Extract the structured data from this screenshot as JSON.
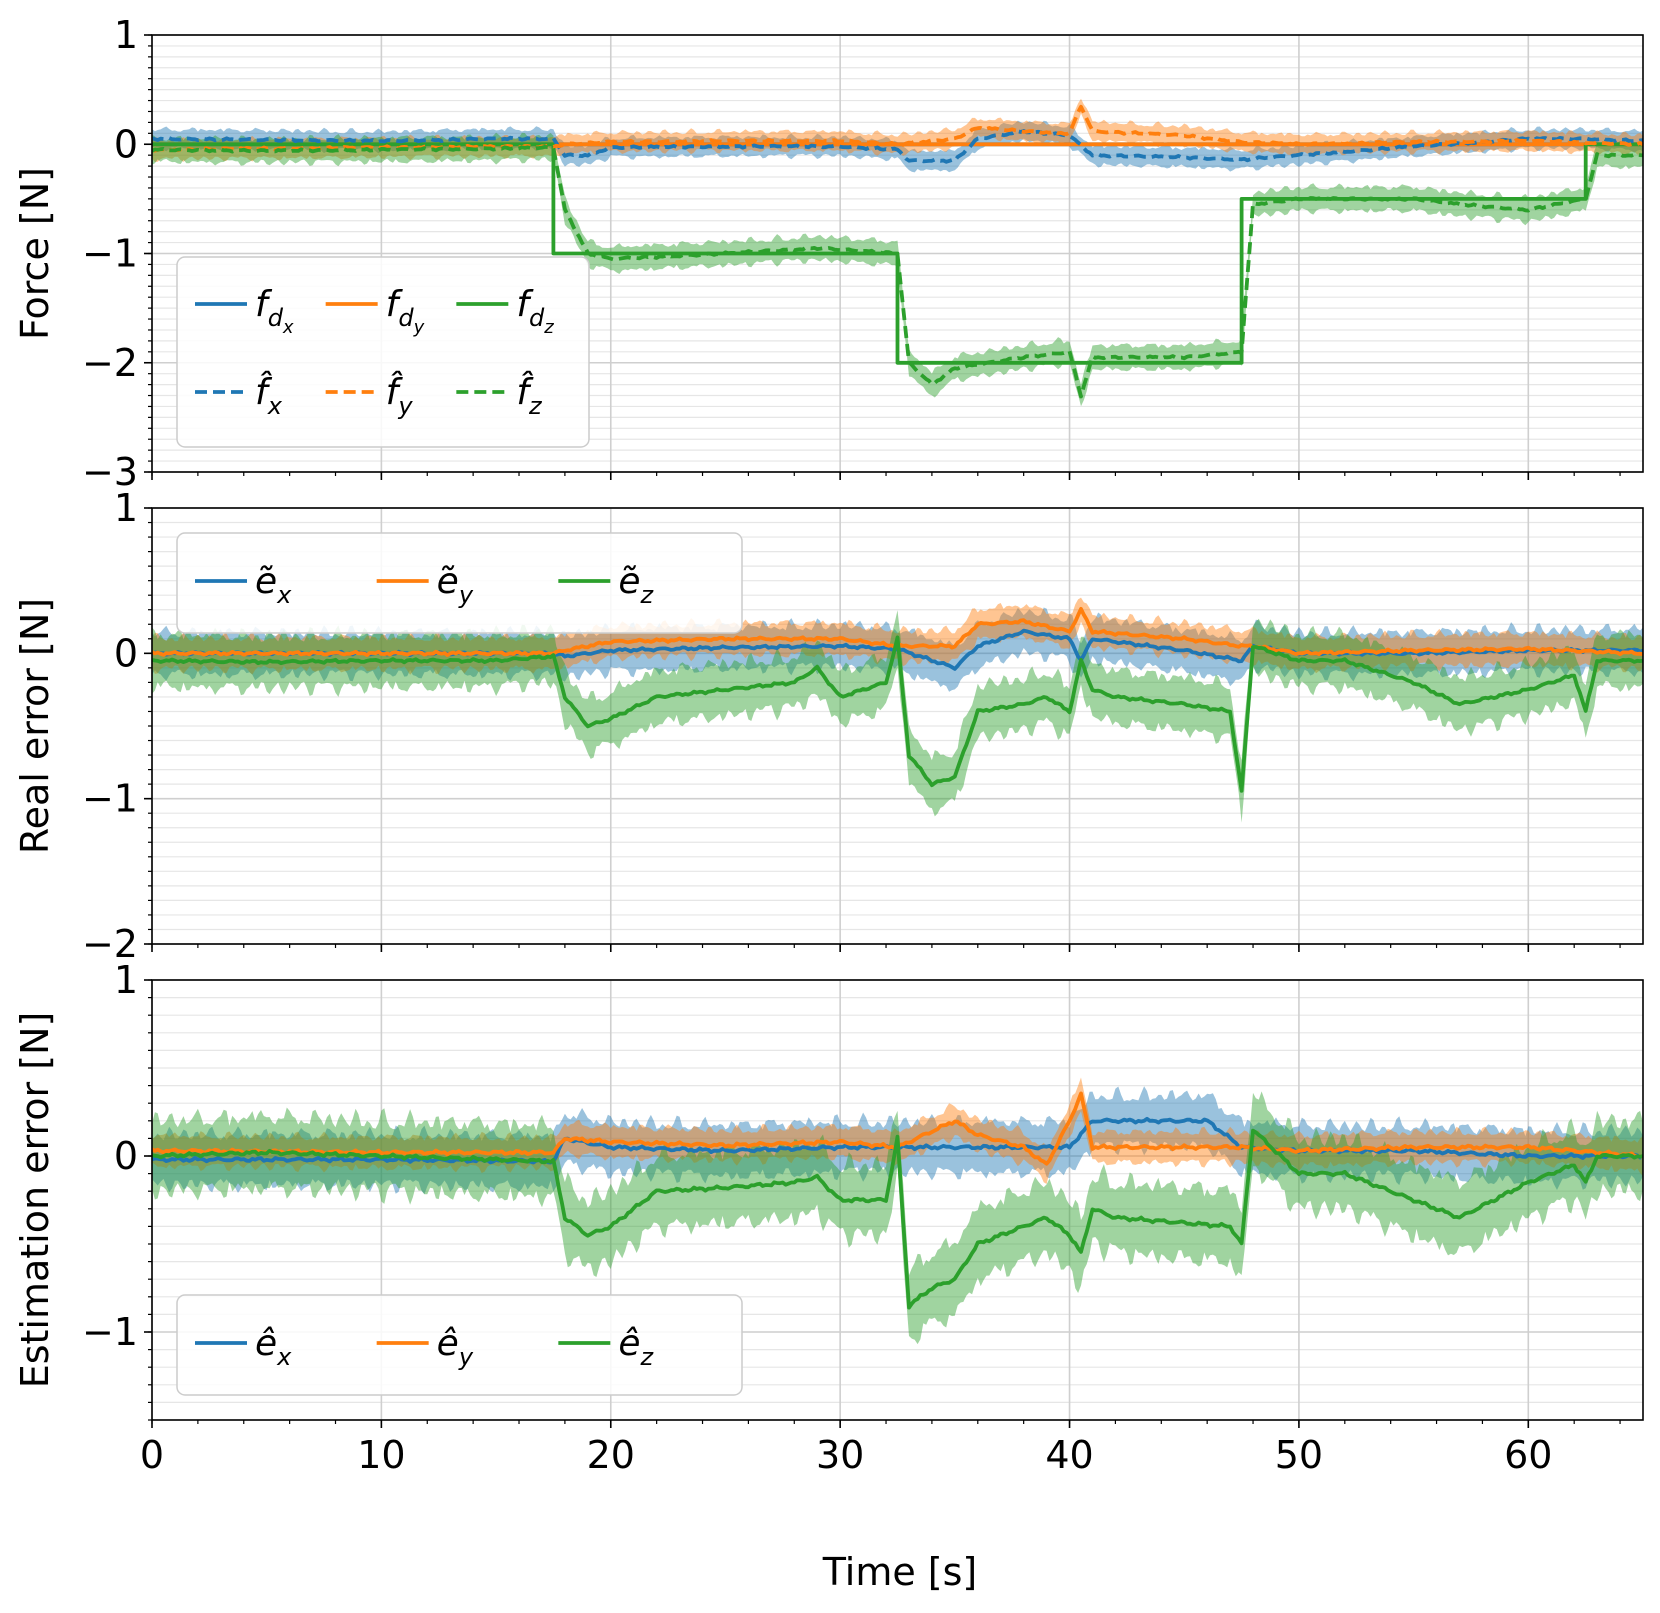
{
  "xlabel": "Time [s]",
  "colors": {
    "x": "#1f77b4",
    "y": "#ff7f0e",
    "z": "#2ca02c"
  },
  "chart_data": [
    {
      "type": "line",
      "panel": "top",
      "title": "",
      "ylabel": "Force [N]",
      "xlabel": "Time [s]",
      "xlim": [
        0,
        65
      ],
      "ylim": [
        -3,
        1
      ],
      "xticks": [
        0,
        10,
        20,
        30,
        40,
        50,
        60
      ],
      "yticks": [
        1,
        0,
        -1,
        -2,
        -3
      ],
      "ytick_labels": [
        "1",
        "0",
        "−1",
        "−2",
        "−3"
      ],
      "grid": true,
      "legend": {
        "position": "lower-left",
        "ncol": 3,
        "entries": [
          {
            "key": "f_dx",
            "base": "f",
            "sub": "d",
            "subsub": "x",
            "color": "#1f77b4",
            "dash": false
          },
          {
            "key": "f_dy",
            "base": "f",
            "sub": "d",
            "subsub": "y",
            "color": "#ff7f0e",
            "dash": false
          },
          {
            "key": "f_dz",
            "base": "f",
            "sub": "d",
            "subsub": "z",
            "color": "#2ca02c",
            "dash": false
          },
          {
            "key": "fhat_x",
            "base": "f̂",
            "sub": "x",
            "color": "#1f77b4",
            "dash": true
          },
          {
            "key": "fhat_y",
            "base": "f̂",
            "sub": "y",
            "color": "#ff7f0e",
            "dash": true
          },
          {
            "key": "fhat_z",
            "base": "f̂",
            "sub": "z",
            "color": "#2ca02c",
            "dash": true
          }
        ]
      },
      "series": [
        {
          "name": "f_dx",
          "color": "#1f77b4",
          "dash": false,
          "x": [
            0,
            65
          ],
          "values": [
            0,
            0
          ]
        },
        {
          "name": "f_dy",
          "color": "#ff7f0e",
          "dash": false,
          "x": [
            0,
            65
          ],
          "values": [
            0,
            0
          ]
        },
        {
          "name": "f_dz",
          "color": "#2ca02c",
          "dash": false,
          "x": [
            0,
            17.5,
            17.5,
            32.5,
            32.5,
            47.5,
            47.5,
            62.5,
            62.5,
            65
          ],
          "values": [
            0,
            0,
            -1,
            -1,
            -2,
            -2,
            -0.5,
            -0.5,
            0,
            0
          ]
        },
        {
          "name": "fhat_x",
          "color": "#1f77b4",
          "dash": true,
          "x": [
            0,
            5,
            10,
            15,
            17.5,
            18,
            19,
            20,
            25,
            30,
            32.5,
            33,
            35,
            36,
            38,
            40,
            41,
            45,
            47.5,
            50,
            55,
            60,
            62.5,
            65
          ],
          "values": [
            0.05,
            0.04,
            0.03,
            0.05,
            0.05,
            -0.1,
            -0.1,
            -0.03,
            -0.02,
            -0.02,
            -0.05,
            -0.15,
            -0.15,
            0.05,
            0.12,
            0.08,
            -0.1,
            -0.12,
            -0.14,
            -0.1,
            -0.02,
            0.05,
            0.05,
            0.03
          ],
          "band": 0.12
        },
        {
          "name": "fhat_y",
          "color": "#ff7f0e",
          "dash": true,
          "x": [
            0,
            10,
            17.5,
            18,
            20,
            25,
            30,
            32.5,
            35,
            36,
            38,
            40,
            40.5,
            41,
            45,
            47.5,
            50,
            55,
            60,
            65
          ],
          "values": [
            -0.05,
            -0.03,
            -0.02,
            0,
            0.02,
            0.03,
            0.03,
            0,
            0.05,
            0.15,
            0.12,
            0.1,
            0.35,
            0.12,
            0.08,
            0.02,
            0,
            0.02,
            0.03,
            0
          ],
          "band": 0.12
        },
        {
          "name": "fhat_z",
          "color": "#2ca02c",
          "dash": true,
          "x": [
            0,
            5,
            10,
            15,
            17.5,
            18,
            19,
            20,
            25,
            29,
            32.5,
            33,
            34,
            35,
            38,
            40,
            40.5,
            41,
            45,
            47.5,
            48,
            50,
            55,
            57,
            60,
            62.5,
            63,
            65
          ],
          "values": [
            -0.05,
            -0.06,
            -0.05,
            -0.04,
            -0.03,
            -0.6,
            -1.0,
            -1.05,
            -1.0,
            -0.95,
            -1.0,
            -2.0,
            -2.2,
            -2.05,
            -1.95,
            -1.9,
            -2.3,
            -1.95,
            -1.95,
            -1.9,
            -0.55,
            -0.5,
            -0.5,
            -0.55,
            -0.6,
            -0.5,
            -0.1,
            -0.1
          ],
          "band": 0.15
        }
      ]
    },
    {
      "type": "line",
      "panel": "middle",
      "title": "",
      "ylabel": "Real error [N]",
      "xlabel": "Time [s]",
      "xlim": [
        0,
        65
      ],
      "ylim": [
        -2,
        1
      ],
      "xticks": [
        0,
        10,
        20,
        30,
        40,
        50,
        60
      ],
      "yticks": [
        1,
        0,
        -1,
        -2
      ],
      "ytick_labels": [
        "1",
        "0",
        "−1",
        "−2"
      ],
      "grid": true,
      "legend": {
        "position": "upper-left",
        "ncol": 3,
        "entries": [
          {
            "key": "etilde_x",
            "base": "ẽ",
            "sub": "x",
            "color": "#1f77b4",
            "dash": false
          },
          {
            "key": "etilde_y",
            "base": "ẽ",
            "sub": "y",
            "color": "#ff7f0e",
            "dash": false
          },
          {
            "key": "etilde_z",
            "base": "ẽ",
            "sub": "z",
            "color": "#2ca02c",
            "dash": false
          }
        ]
      },
      "series": [
        {
          "name": "etilde_x",
          "color": "#1f77b4",
          "dash": false,
          "x": [
            0,
            10,
            17.5,
            18,
            20,
            25,
            30,
            32.5,
            35,
            36,
            38,
            40,
            40.5,
            41,
            45,
            47.5,
            48,
            50,
            55,
            60,
            65
          ],
          "values": [
            0,
            0,
            0,
            -0.02,
            0.02,
            0.04,
            0.05,
            0.03,
            -0.1,
            0.05,
            0.15,
            0.1,
            -0.05,
            0.1,
            0.02,
            -0.05,
            0.05,
            0,
            0,
            0.02,
            0.02
          ],
          "band": 0.2
        },
        {
          "name": "etilde_y",
          "color": "#ff7f0e",
          "dash": false,
          "x": [
            0,
            10,
            17.5,
            18,
            20,
            25,
            30,
            32.5,
            35,
            36,
            38,
            40,
            40.5,
            41,
            45,
            47.5,
            48,
            50,
            55,
            60,
            65
          ],
          "values": [
            0,
            0,
            0,
            0.02,
            0.08,
            0.1,
            0.1,
            0.05,
            0.05,
            0.2,
            0.22,
            0.15,
            0.3,
            0.15,
            0.1,
            0.05,
            0.05,
            0,
            0.02,
            0.03,
            0
          ],
          "band": 0.15
        },
        {
          "name": "etilde_z",
          "color": "#2ca02c",
          "dash": false,
          "x": [
            0,
            5,
            10,
            15,
            17.5,
            18,
            19,
            20,
            22,
            25,
            28,
            29,
            30,
            32,
            32.5,
            33,
            34,
            35,
            36,
            38,
            39,
            40,
            40.5,
            41,
            42,
            45,
            47,
            47.5,
            48,
            50,
            52,
            55,
            57,
            60,
            62,
            62.5,
            63,
            65
          ],
          "values": [
            -0.05,
            -0.06,
            -0.05,
            -0.05,
            -0.02,
            -0.3,
            -0.5,
            -0.45,
            -0.3,
            -0.25,
            -0.2,
            -0.1,
            -0.3,
            -0.2,
            0.1,
            -0.7,
            -0.9,
            -0.85,
            -0.4,
            -0.35,
            -0.3,
            -0.4,
            -0.05,
            -0.25,
            -0.3,
            -0.35,
            -0.4,
            -0.95,
            0.05,
            -0.05,
            -0.05,
            -0.2,
            -0.35,
            -0.25,
            -0.15,
            -0.4,
            -0.05,
            -0.05
          ],
          "band": 0.25
        }
      ]
    },
    {
      "type": "line",
      "panel": "bottom",
      "title": "",
      "ylabel": "Estimation error [N]",
      "xlabel": "Time [s]",
      "xlim": [
        0,
        65
      ],
      "ylim": [
        -1.5,
        1
      ],
      "xticks": [
        0,
        10,
        20,
        30,
        40,
        50,
        60
      ],
      "yticks": [
        1,
        0,
        -1
      ],
      "ytick_labels": [
        "1",
        "0",
        "−1"
      ],
      "grid": true,
      "legend": {
        "position": "lower-left",
        "ncol": 3,
        "entries": [
          {
            "key": "ehat_x",
            "base": "ê",
            "sub": "x",
            "color": "#1f77b4",
            "dash": false
          },
          {
            "key": "ehat_y",
            "base": "ê",
            "sub": "y",
            "color": "#ff7f0e",
            "dash": false
          },
          {
            "key": "ehat_z",
            "base": "ê",
            "sub": "z",
            "color": "#2ca02c",
            "dash": false
          }
        ]
      },
      "series": [
        {
          "name": "ehat_x",
          "color": "#1f77b4",
          "dash": false,
          "x": [
            0,
            10,
            17.5,
            18,
            20,
            25,
            30,
            32.5,
            35,
            38,
            40,
            41,
            45,
            46,
            47.5,
            50,
            55,
            60,
            65
          ],
          "values": [
            -0.02,
            -0.02,
            -0.03,
            0.1,
            0.05,
            0.03,
            0.05,
            0.05,
            0.05,
            0.05,
            0.05,
            0.2,
            0.2,
            0.2,
            0.05,
            0.03,
            0.03,
            0,
            0
          ],
          "band": 0.2
        },
        {
          "name": "ehat_y",
          "color": "#ff7f0e",
          "dash": false,
          "x": [
            0,
            10,
            17.5,
            18,
            20,
            25,
            30,
            32.5,
            35,
            36,
            38,
            39,
            40,
            40.5,
            41,
            45,
            47.5,
            50,
            55,
            60,
            65
          ],
          "values": [
            0.03,
            0.02,
            0.02,
            0.1,
            0.08,
            0.06,
            0.08,
            0.05,
            0.2,
            0.12,
            0.05,
            -0.05,
            0.2,
            0.35,
            0.05,
            0.05,
            0.05,
            0.03,
            0.05,
            0.05,
            0
          ],
          "band": 0.12
        },
        {
          "name": "ehat_z",
          "color": "#2ca02c",
          "dash": false,
          "x": [
            0,
            5,
            10,
            15,
            17.5,
            18,
            19,
            20,
            22,
            25,
            28,
            29,
            30,
            32,
            32.5,
            33,
            34,
            35,
            36,
            38,
            39,
            40,
            40.5,
            41,
            42,
            45,
            47,
            47.5,
            48,
            50,
            52,
            55,
            57,
            60,
            62,
            62.5,
            63,
            65
          ],
          "values": [
            0,
            0.02,
            0,
            -0.02,
            -0.03,
            -0.35,
            -0.45,
            -0.4,
            -0.2,
            -0.18,
            -0.15,
            -0.12,
            -0.25,
            -0.25,
            0.1,
            -0.85,
            -0.75,
            -0.7,
            -0.5,
            -0.4,
            -0.35,
            -0.45,
            -0.55,
            -0.3,
            -0.35,
            -0.38,
            -0.4,
            -0.5,
            0.15,
            -0.1,
            -0.1,
            -0.25,
            -0.35,
            -0.15,
            -0.05,
            -0.15,
            0,
            0
          ],
          "band": 0.28
        }
      ]
    }
  ]
}
